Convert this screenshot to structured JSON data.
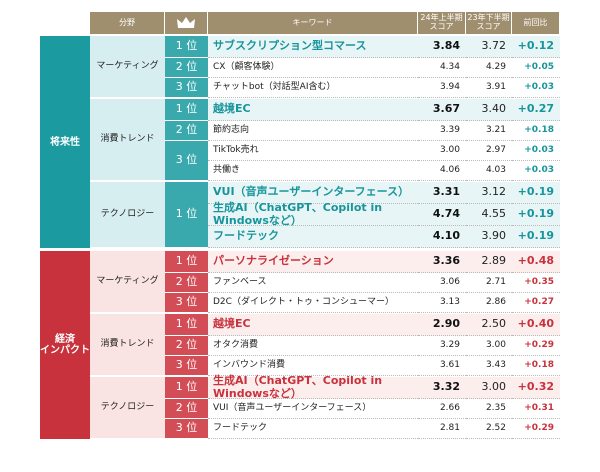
{
  "header": {
    "field": "分野",
    "keyword": "キーワード",
    "score24": "24年上半期\nスコア",
    "score23": "23年下半期\nスコア",
    "change": "前回比"
  },
  "groups": [
    {
      "label": "将来性",
      "categories": [
        {
          "name": "マーケティング",
          "ranks": [
            {
              "rank": "1 位",
              "items": [
                {
                  "keyword": "サブスクリプション型コマース",
                  "score24": "3.84",
                  "score23": "3.72",
                  "change": "+0.12"
                }
              ]
            },
            {
              "rank": "2 位",
              "items": [
                {
                  "keyword": "CX（顧客体験）",
                  "score24": "4.34",
                  "score23": "4.29",
                  "change": "+0.05"
                }
              ]
            },
            {
              "rank": "3 位",
              "items": [
                {
                  "keyword": "チャットbot（対話型AI含む）",
                  "score24": "3.94",
                  "score23": "3.91",
                  "change": "+0.03"
                }
              ]
            }
          ]
        },
        {
          "name": "消費トレンド",
          "ranks": [
            {
              "rank": "1 位",
              "items": [
                {
                  "keyword": "越境EC",
                  "score24": "3.67",
                  "score23": "3.40",
                  "change": "+0.27"
                }
              ]
            },
            {
              "rank": "2 位",
              "items": [
                {
                  "keyword": "節約志向",
                  "score24": "3.39",
                  "score23": "3.21",
                  "change": "+0.18"
                }
              ]
            },
            {
              "rank": "3 位",
              "items": [
                {
                  "keyword": "TikTok売れ",
                  "score24": "3.00",
                  "score23": "2.97",
                  "change": "+0.03"
                },
                {
                  "keyword": "共働き",
                  "score24": "4.06",
                  "score23": "4.03",
                  "change": "+0.03"
                }
              ]
            }
          ]
        },
        {
          "name": "テクノロジー",
          "ranks": [
            {
              "rank": "1 位",
              "items": [
                {
                  "keyword": "VUI（音声ユーザーインターフェース）",
                  "score24": "3.31",
                  "score23": "3.12",
                  "change": "+0.19"
                },
                {
                  "keyword": "生成AI（ChatGPT、Copilot in Windowsなど）",
                  "score24": "4.74",
                  "score23": "4.55",
                  "change": "+0.19"
                },
                {
                  "keyword": "フードテック",
                  "score24": "4.10",
                  "score23": "3.90",
                  "change": "+0.19"
                }
              ]
            }
          ]
        }
      ]
    },
    {
      "label": "経済\nインパクト",
      "categories": [
        {
          "name": "マーケティング",
          "ranks": [
            {
              "rank": "1 位",
              "items": [
                {
                  "keyword": "パーソナライゼーション",
                  "score24": "3.36",
                  "score23": "2.89",
                  "change": "+0.48"
                }
              ]
            },
            {
              "rank": "2 位",
              "items": [
                {
                  "keyword": "ファンベース",
                  "score24": "3.06",
                  "score23": "2.71",
                  "change": "+0.35"
                }
              ]
            },
            {
              "rank": "3 位",
              "items": [
                {
                  "keyword": "D2C（ダイレクト・トゥ・コンシューマー）",
                  "score24": "3.13",
                  "score23": "2.86",
                  "change": "+0.27"
                }
              ]
            }
          ]
        },
        {
          "name": "消費トレンド",
          "ranks": [
            {
              "rank": "1 位",
              "items": [
                {
                  "keyword": "越境EC",
                  "score24": "2.90",
                  "score23": "2.50",
                  "change": "+0.40"
                }
              ]
            },
            {
              "rank": "2 位",
              "items": [
                {
                  "keyword": "オタク消費",
                  "score24": "3.29",
                  "score23": "3.00",
                  "change": "+0.29"
                }
              ]
            },
            {
              "rank": "3 位",
              "items": [
                {
                  "keyword": "インバウンド消費",
                  "score24": "3.61",
                  "score23": "3.43",
                  "change": "+0.18"
                }
              ]
            }
          ]
        },
        {
          "name": "テクノロジー",
          "ranks": [
            {
              "rank": "1 位",
              "items": [
                {
                  "keyword": "生成AI（ChatGPT、Copilot in Windowsなど）",
                  "score24": "3.32",
                  "score23": "3.00",
                  "change": "+0.32"
                }
              ]
            },
            {
              "rank": "2 位",
              "items": [
                {
                  "keyword": "VUI（音声ユーザーインターフェース）",
                  "score24": "2.66",
                  "score23": "2.35",
                  "change": "+0.31"
                }
              ]
            },
            {
              "rank": "3 位",
              "items": [
                {
                  "keyword": "フードテック",
                  "score24": "2.81",
                  "score23": "2.52",
                  "change": "+0.29"
                }
              ]
            }
          ]
        }
      ]
    }
  ]
}
